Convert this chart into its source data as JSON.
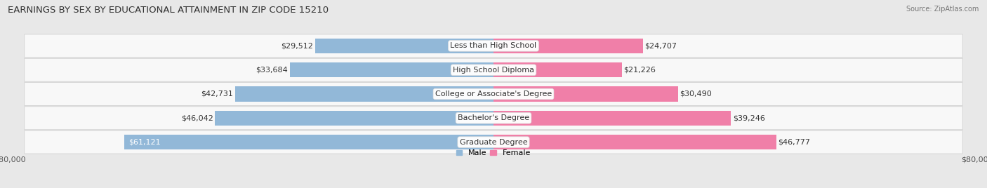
{
  "title": "EARNINGS BY SEX BY EDUCATIONAL ATTAINMENT IN ZIP CODE 15210",
  "source": "Source: ZipAtlas.com",
  "categories": [
    "Less than High School",
    "High School Diploma",
    "College or Associate's Degree",
    "Bachelor's Degree",
    "Graduate Degree"
  ],
  "male_values": [
    29512,
    33684,
    42731,
    46042,
    61121
  ],
  "female_values": [
    24707,
    21226,
    30490,
    39246,
    46777
  ],
  "male_color": "#92b8d8",
  "female_color": "#f07fa8",
  "bar_height": 0.62,
  "max_val": 80000,
  "background_color": "#e8e8e8",
  "row_bg_color": "#f5f5f5",
  "title_fontsize": 9.5,
  "label_fontsize": 8,
  "tick_fontsize": 8,
  "cat_label_fontsize": 8
}
